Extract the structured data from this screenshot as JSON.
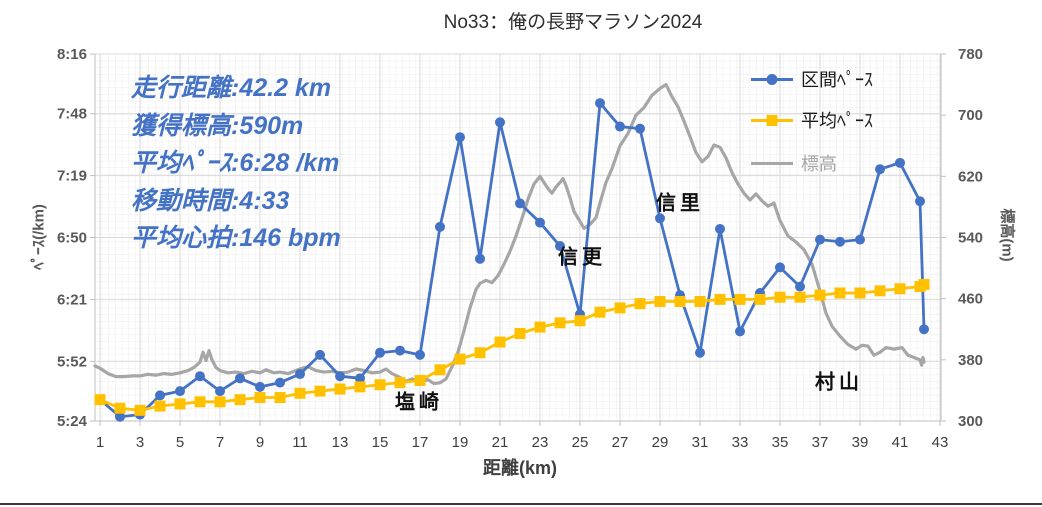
{
  "title": "No33：俺の長野マラソン2024",
  "runner_stats": {
    "lines": [
      "走行距離:42.2 km",
      "獲得標高:590m",
      "平均ﾍﾟｰｽ:6:28 /km",
      "移動時間:4:33",
      "平均心拍:146 bpm"
    ],
    "text_color": "#4472C4"
  },
  "legend": {
    "position": "right-inside",
    "items": [
      {
        "label": "区間ﾍﾟｰｽ",
        "series": 0,
        "text_color": "#1a1a1a"
      },
      {
        "label": "平均ﾍﾟｰｽ",
        "series": 1,
        "text_color": "#1a1a1a"
      },
      {
        "label": "標高",
        "series": 2,
        "text_color": "#a6a6a6"
      }
    ]
  },
  "chart_data": {
    "type": "line",
    "title": "No33：俺の長野マラソン2024",
    "xlabel": "距離(km)",
    "ylabel_left": "ﾍﾟｰｽ(/km)",
    "ylabel_right": "標高(m)",
    "grid": "on",
    "grid_color": "#d9d9d9",
    "minor_grid_color": "#ececec",
    "axis_color": "#bfbfbf",
    "x_ticks": [
      1,
      3,
      5,
      7,
      9,
      11,
      13,
      15,
      17,
      19,
      21,
      23,
      25,
      27,
      29,
      31,
      33,
      35,
      37,
      39,
      41,
      43
    ],
    "x_range": [
      0.75,
      43.05
    ],
    "y_left_ticks": [
      "5:24",
      "5:52",
      "6:21",
      "6:50",
      "7:19",
      "7:48",
      "8:16"
    ],
    "y_left_range_sec": [
      324,
      496
    ],
    "y_right_ticks": [
      300,
      380,
      460,
      540,
      620,
      700,
      780
    ],
    "y_right_range": [
      300,
      780
    ],
    "series": [
      {
        "name": "区間ﾍﾟｰｽ",
        "key": "section-pace",
        "axis": "left",
        "color": "#4472C4",
        "marker": "circle",
        "x": [
          1,
          2,
          3,
          4,
          5,
          6,
          7,
          8,
          9,
          10,
          11,
          12,
          13,
          14,
          15,
          16,
          17,
          18,
          19,
          20,
          21,
          22,
          23,
          24,
          25,
          26,
          27,
          28,
          29,
          30,
          31,
          32,
          33,
          34,
          35,
          36,
          37,
          38,
          39,
          40,
          41,
          42,
          42.2
        ],
        "pace": [
          "5:34",
          "5:26",
          "5:27",
          "5:36",
          "5:38",
          "5:45",
          "5:38",
          "5:44",
          "5:40",
          "5:42",
          "5:46",
          "5:55",
          "5:45",
          "5:44",
          "5:56",
          "5:57",
          "5:55",
          "6:55",
          "7:37",
          "6:40",
          "7:44",
          "7:06",
          "6:57",
          "6:46",
          "6:14",
          "7:53",
          "7:42",
          "7:41",
          "6:59",
          "6:23",
          "5:56",
          "6:54",
          "6:06",
          "6:24",
          "6:36",
          "6:27",
          "6:49",
          "6:48",
          "6:49",
          "7:22",
          "7:25",
          "7:07",
          "6:07"
        ]
      },
      {
        "name": "平均ﾍﾟｰｽ",
        "key": "average-pace",
        "axis": "left",
        "color": "#FFC000",
        "marker": "square",
        "x": [
          1,
          2,
          3,
          4,
          5,
          6,
          7,
          8,
          9,
          10,
          11,
          12,
          13,
          14,
          15,
          16,
          17,
          18,
          19,
          20,
          21,
          22,
          23,
          24,
          25,
          26,
          27,
          28,
          29,
          30,
          31,
          32,
          33,
          34,
          35,
          36,
          37,
          38,
          39,
          40,
          41,
          42,
          42.2
        ],
        "pace": [
          "5:34",
          "5:30",
          "5:29",
          "5:31",
          "5:32",
          "5:33",
          "5:33",
          "5:34",
          "5:35",
          "5:35",
          "5:37",
          "5:38",
          "5:39",
          "5:40",
          "5:41",
          "5:42",
          "5:43",
          "5:48",
          "5:53",
          "5:56",
          "6:01",
          "6:05",
          "6:08",
          "6:10",
          "6:11",
          "6:15",
          "6:17",
          "6:19",
          "6:20",
          "6:20",
          "6:20",
          "6:21",
          "6:21",
          "6:21",
          "6:22",
          "6:22",
          "6:23",
          "6:24",
          "6:24",
          "6:25",
          "6:26",
          "6:27",
          "6:28"
        ]
      },
      {
        "name": "標高",
        "key": "elevation",
        "axis": "right",
        "color": "#A6A6A6",
        "marker": "none",
        "points": [
          [
            0.75,
            372
          ],
          [
            1,
            369
          ],
          [
            1.4,
            362
          ],
          [
            1.8,
            358
          ],
          [
            2.2,
            358
          ],
          [
            2.6,
            359
          ],
          [
            3,
            359
          ],
          [
            3.4,
            361
          ],
          [
            3.8,
            360
          ],
          [
            4.2,
            362
          ],
          [
            4.6,
            361
          ],
          [
            5,
            363
          ],
          [
            5.4,
            366
          ],
          [
            5.7,
            370
          ],
          [
            6,
            377
          ],
          [
            6.15,
            390
          ],
          [
            6.3,
            379
          ],
          [
            6.45,
            392
          ],
          [
            6.6,
            380
          ],
          [
            6.8,
            370
          ],
          [
            7,
            366
          ],
          [
            7.4,
            363
          ],
          [
            7.8,
            364
          ],
          [
            8.2,
            362
          ],
          [
            8.6,
            365
          ],
          [
            9,
            363
          ],
          [
            9.3,
            367
          ],
          [
            9.7,
            363
          ],
          [
            10,
            364
          ],
          [
            10.4,
            362
          ],
          [
            10.8,
            366
          ],
          [
            11.1,
            369
          ],
          [
            11.4,
            371
          ],
          [
            11.8,
            366
          ],
          [
            12.2,
            364
          ],
          [
            12.6,
            365
          ],
          [
            13,
            363
          ],
          [
            13.4,
            364
          ],
          [
            13.8,
            368
          ],
          [
            14.2,
            366
          ],
          [
            14.6,
            363
          ],
          [
            15,
            364
          ],
          [
            15.3,
            368
          ],
          [
            15.6,
            362
          ],
          [
            16,
            357
          ],
          [
            16.3,
            352
          ],
          [
            16.6,
            355
          ],
          [
            17,
            351
          ],
          [
            17.4,
            354
          ],
          [
            17.7,
            349
          ],
          [
            18,
            350
          ],
          [
            18.3,
            355
          ],
          [
            18.6,
            371
          ],
          [
            18.9,
            390
          ],
          [
            19.2,
            418
          ],
          [
            19.5,
            448
          ],
          [
            19.8,
            472
          ],
          [
            20,
            480
          ],
          [
            20.3,
            484
          ],
          [
            20.6,
            481
          ],
          [
            20.9,
            490
          ],
          [
            21.2,
            505
          ],
          [
            21.5,
            522
          ],
          [
            21.8,
            542
          ],
          [
            22.1,
            565
          ],
          [
            22.4,
            590
          ],
          [
            22.7,
            610
          ],
          [
            23,
            620
          ],
          [
            23.2,
            612
          ],
          [
            23.4,
            604
          ],
          [
            23.6,
            598
          ],
          [
            23.8,
            606
          ],
          [
            24,
            612
          ],
          [
            24.15,
            617
          ],
          [
            24.3,
            608
          ],
          [
            24.5,
            592
          ],
          [
            24.7,
            574
          ],
          [
            25,
            561
          ],
          [
            25.2,
            552
          ],
          [
            25.5,
            557
          ],
          [
            25.8,
            566
          ],
          [
            26,
            585
          ],
          [
            26.3,
            612
          ],
          [
            26.6,
            630
          ],
          [
            27,
            660
          ],
          [
            27.4,
            676
          ],
          [
            27.8,
            700
          ],
          [
            28.2,
            710
          ],
          [
            28.6,
            726
          ],
          [
            29,
            735
          ],
          [
            29.3,
            740
          ],
          [
            29.6,
            724
          ],
          [
            29.9,
            711
          ],
          [
            30.2,
            692
          ],
          [
            30.5,
            672
          ],
          [
            30.8,
            651
          ],
          [
            31.1,
            639
          ],
          [
            31.4,
            646
          ],
          [
            31.7,
            661
          ],
          [
            32,
            658
          ],
          [
            32.3,
            644
          ],
          [
            32.6,
            625
          ],
          [
            32.9,
            610
          ],
          [
            33.2,
            598
          ],
          [
            33.5,
            589
          ],
          [
            33.8,
            597
          ],
          [
            34.1,
            588
          ],
          [
            34.4,
            581
          ],
          [
            34.7,
            585
          ],
          [
            35,
            562
          ],
          [
            35.4,
            542
          ],
          [
            35.8,
            534
          ],
          [
            36.2,
            524
          ],
          [
            36.6,
            505
          ],
          [
            37,
            470
          ],
          [
            37.3,
            441
          ],
          [
            37.6,
            424
          ],
          [
            38,
            411
          ],
          [
            38.4,
            400
          ],
          [
            38.8,
            394
          ],
          [
            39.1,
            399
          ],
          [
            39.4,
            398
          ],
          [
            39.7,
            386
          ],
          [
            40,
            390
          ],
          [
            40.3,
            396
          ],
          [
            40.7,
            394
          ],
          [
            41.1,
            396
          ],
          [
            41.4,
            386
          ],
          [
            41.7,
            383
          ],
          [
            42,
            380
          ],
          [
            42.08,
            373
          ],
          [
            42.15,
            383
          ],
          [
            42.2,
            377
          ]
        ]
      }
    ],
    "station_labels": [
      {
        "text": "塩崎",
        "km": 16.95,
        "sec": 334
      },
      {
        "text": "信更",
        "km": 25.1,
        "sec": 402
      },
      {
        "text": "信里",
        "km": 30.0,
        "sec": 427
      },
      {
        "text": "村山",
        "km": 37.95,
        "sec": 343
      }
    ]
  }
}
